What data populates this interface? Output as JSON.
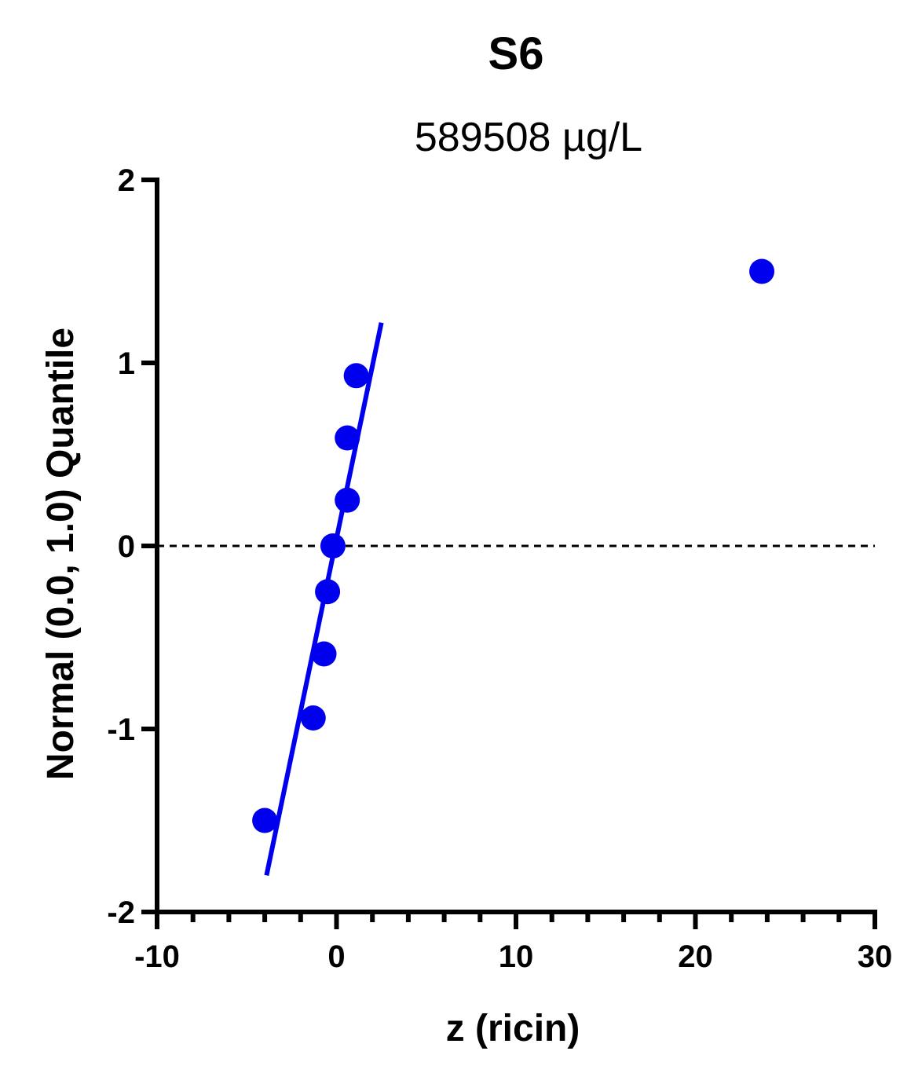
{
  "chart_data": {
    "type": "scatter",
    "title": "S6",
    "subtitle": "589508 µg/L",
    "xlabel": "z (ricin)",
    "ylabel": "Normal (0.0, 1.0) Quantile",
    "xlim": [
      -10,
      30
    ],
    "ylim": [
      -2,
      2
    ],
    "x_ticks": [
      -10,
      0,
      10,
      20,
      30
    ],
    "y_ticks": [
      -2,
      -1,
      0,
      1,
      2
    ],
    "grid": false,
    "reference_line_y": 0,
    "point_color": "#0000ee",
    "line_color": "#0000ee",
    "points": [
      {
        "x": -4.0,
        "y": -1.5
      },
      {
        "x": -1.3,
        "y": -0.94
      },
      {
        "x": -0.7,
        "y": -0.59
      },
      {
        "x": -0.5,
        "y": -0.25
      },
      {
        "x": -0.2,
        "y": 0.0
      },
      {
        "x": 0.6,
        "y": 0.25
      },
      {
        "x": 0.6,
        "y": 0.59
      },
      {
        "x": 1.1,
        "y": 0.93
      },
      {
        "x": 23.7,
        "y": 1.5
      }
    ],
    "fit_line": [
      {
        "x": -3.9,
        "y": -1.8
      },
      {
        "x": 2.5,
        "y": 1.22
      }
    ]
  }
}
